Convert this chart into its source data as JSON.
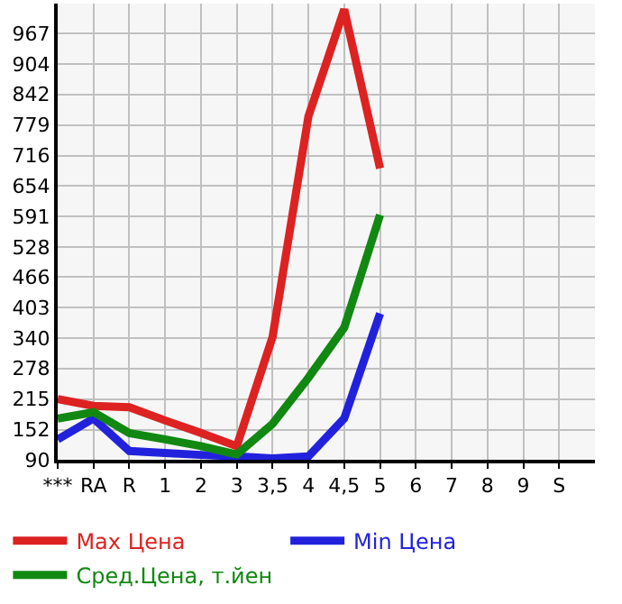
{
  "chart_data": {
    "type": "line",
    "categories": [
      "***",
      "RA",
      "R",
      "1",
      "2",
      "3",
      "3,5",
      "4",
      "4,5",
      "5",
      "6",
      "7",
      "8",
      "9",
      "S"
    ],
    "series": [
      {
        "name": "Max Цена",
        "color": "#dd2222",
        "values": [
          215,
          201,
          198,
          171,
          145,
          118,
          343,
          797,
          1017,
          690,
          null,
          null,
          null,
          null,
          null
        ]
      },
      {
        "name": "Min Цена",
        "color": "#2222dd",
        "values": [
          132,
          175,
          108,
          104,
          100,
          97,
          93,
          97,
          175,
          391,
          null,
          null,
          null,
          null,
          null
        ]
      },
      {
        "name": "Сред.Цена, т.йен",
        "color": "#118811",
        "values": [
          175,
          188,
          145,
          132,
          118,
          101,
          164,
          259,
          362,
          594,
          null,
          null,
          null,
          null,
          null
        ]
      }
    ],
    "ylim": [
      90,
      1029
    ],
    "yticks": [
      90,
      152,
      215,
      278,
      340,
      403,
      466,
      528,
      591,
      654,
      716,
      779,
      842,
      904,
      967
    ],
    "grid": true,
    "legend": "bottom",
    "marker": "none",
    "line_style": "solid"
  }
}
